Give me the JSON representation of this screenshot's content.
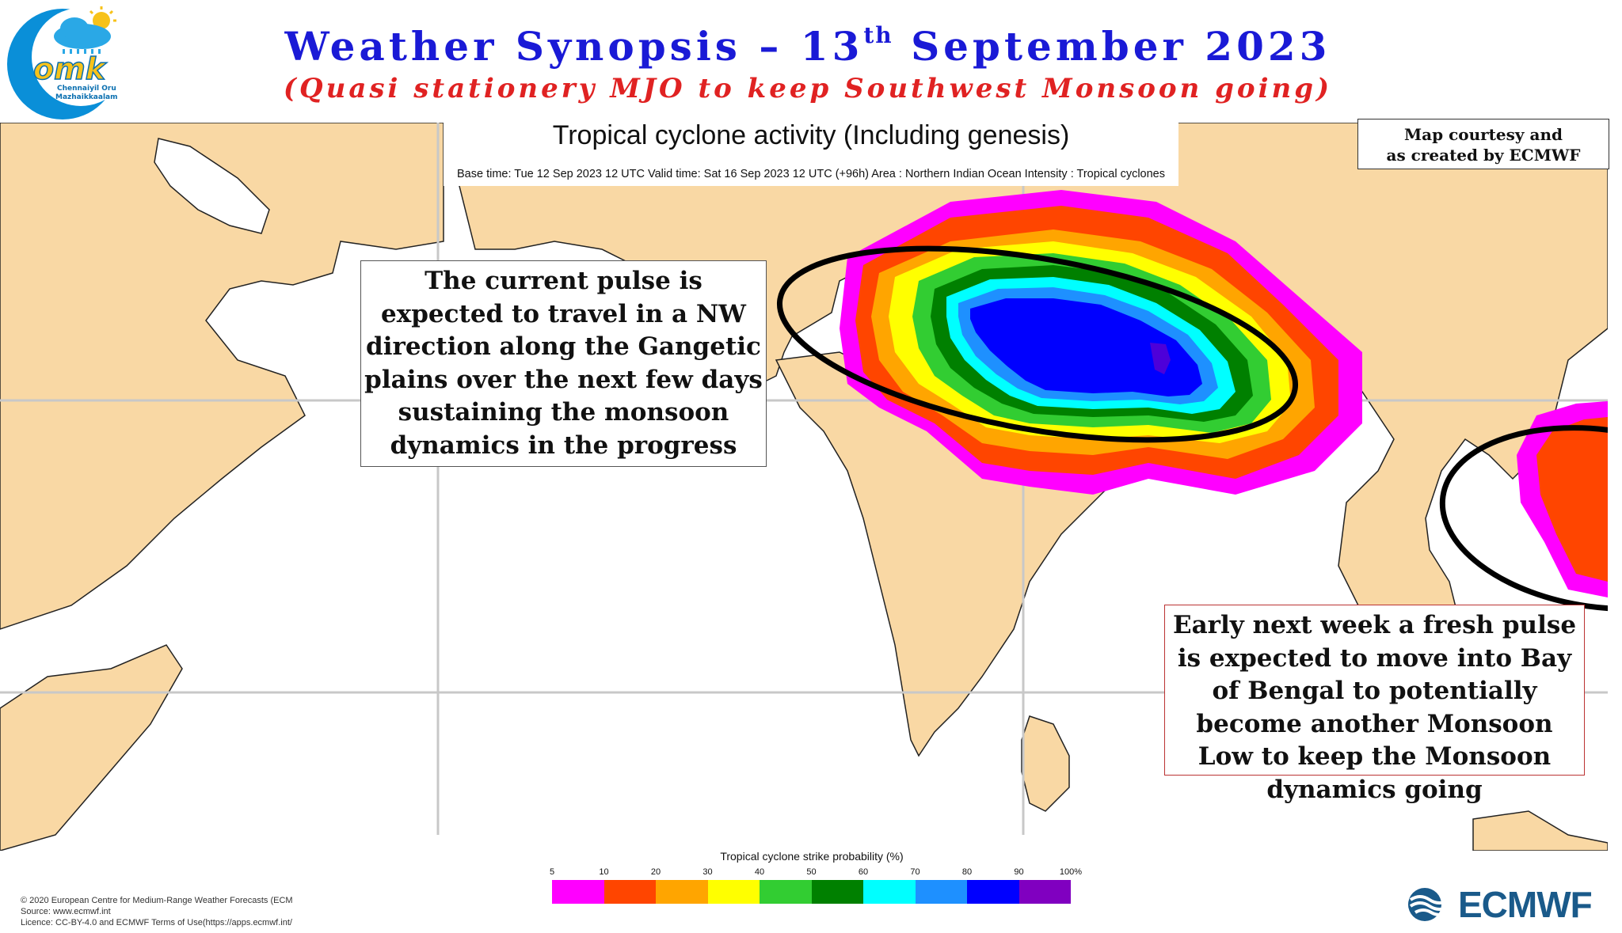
{
  "header": {
    "title_prefix": "Weather Synopsis – 13",
    "title_sup": "th",
    "title_suffix": " September 2023",
    "subtitle": "(Quasi stationery MJO to keep Southwest Monsoon going)"
  },
  "logo": {
    "icon": "cloud-sun-rain-icon",
    "text": "omk",
    "line1": "Chennaiyil Oru",
    "line2": "Mazhaikkaalam"
  },
  "map": {
    "title": "Tropical cyclone activity (Including genesis)",
    "meta": "Base time: Tue 12 Sep 2023 12 UTC Valid time: Sat 16 Sep 2023 12 UTC (+96h) Area : Northern Indian Ocean Intensity : Tropical cyclones",
    "land_color": "#f9d8a4",
    "sea_color": "#ffffff",
    "grid_color": "#cccccc"
  },
  "courtesy": {
    "line1": "Map courtesy and",
    "line2": "as created by ECMWF"
  },
  "notes": {
    "left": "The current pulse is expected to travel in a NW direction along the Gangetic plains over the next few days sustaining the monsoon dynamics in the progress",
    "right": "Early next week a fresh pulse is expected to move into Bay of Bengal to potentially become another Monsoon Low to keep the Monsoon dynamics going"
  },
  "colorbar": {
    "title": "Tropical cyclone strike probability (%)",
    "ticks": [
      "5",
      "10",
      "20",
      "30",
      "40",
      "50",
      "60",
      "70",
      "80",
      "90",
      "100%"
    ],
    "colors": [
      "#ff00ff",
      "#ff4500",
      "#ffa500",
      "#ffff00",
      "#32cd32",
      "#008000",
      "#00ffff",
      "#1e90ff",
      "#0000ff",
      "#8000c0"
    ]
  },
  "footer": {
    "line1": "© 2020 European Centre for Medium-Range Weather Forecasts (ECM",
    "line2": "Source: www.ecmwf.int",
    "line3": "Licence: CC-BY-4.0 and ECMWF Terms of Use(https://apps.ecmwf.int/"
  },
  "brand": {
    "name": "ECMWF",
    "icon": "ecmwf-wave-icon"
  }
}
